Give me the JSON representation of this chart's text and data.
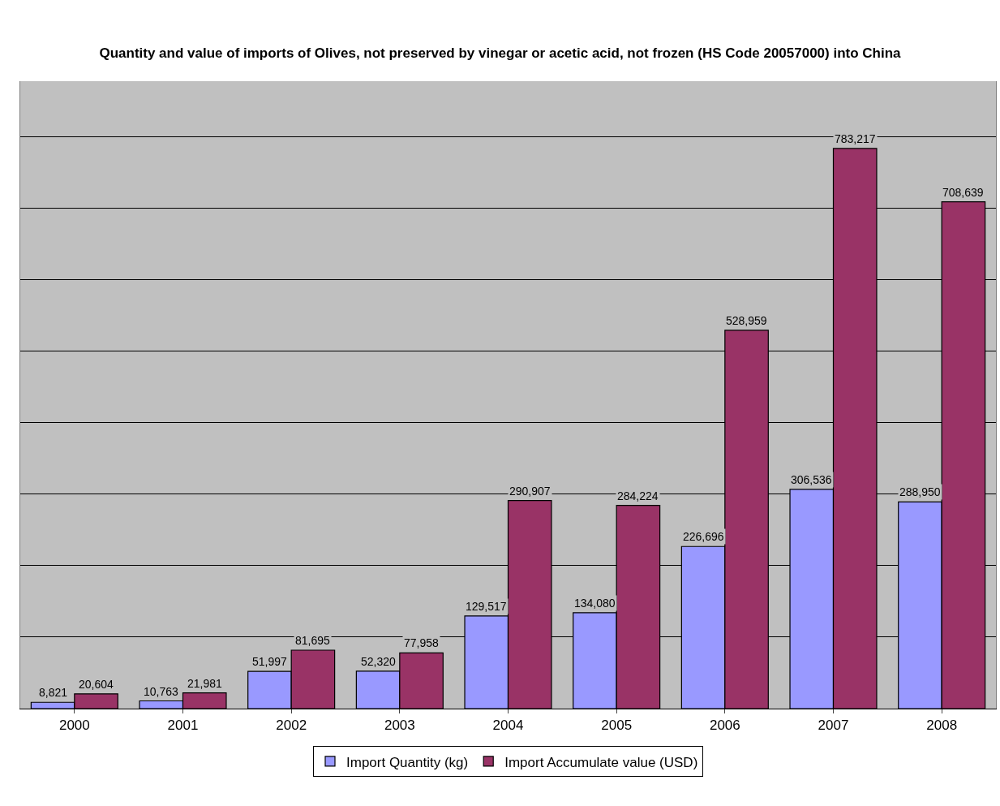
{
  "chart_data": {
    "type": "bar",
    "title": "Quantity and value of imports of Olives, not preserved by vinegar or acetic acid, not frozen (HS Code 20057000) into China",
    "categories": [
      "2000",
      "2001",
      "2002",
      "2003",
      "2004",
      "2005",
      "2006",
      "2007",
      "2008"
    ],
    "series": [
      {
        "name": "Import Quantity (kg)",
        "color": "#9999ff",
        "values": [
          8821,
          10763,
          51997,
          52320,
          129517,
          134080,
          226696,
          306536,
          288950
        ],
        "value_labels": [
          "8,821",
          "10,763",
          "51,997",
          "52,320",
          "129,517",
          "134,080",
          "226,696",
          "306,536",
          "288,950"
        ]
      },
      {
        "name": "Import Accumulate value (USD)",
        "color": "#993366",
        "values": [
          20604,
          21981,
          81695,
          77958,
          290907,
          284224,
          528959,
          783217,
          708639
        ],
        "value_labels": [
          "20,604",
          "21,981",
          "81,695",
          "77,958",
          "290,907",
          "284,224",
          "528,959",
          "783,217",
          "708,639"
        ]
      }
    ],
    "tick_labels": "x",
    "grid": "y",
    "legend": "bottom"
  }
}
